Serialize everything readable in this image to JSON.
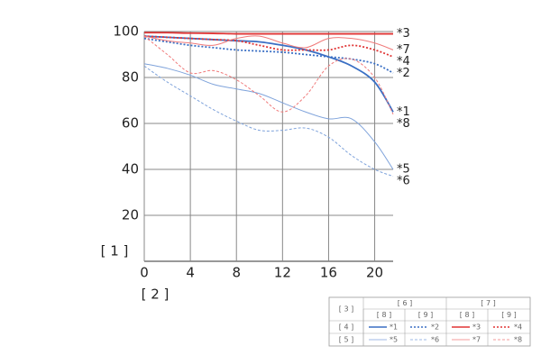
{
  "chart_data": {
    "type": "line",
    "x_label": "[ 2 ]",
    "y_label": "[ 1 ]",
    "x": [
      0,
      2,
      4,
      6,
      8,
      10,
      12,
      14,
      16,
      18,
      20,
      21.6
    ],
    "xlim": [
      0,
      21.6
    ],
    "xticks": [
      0,
      4,
      8,
      12,
      16,
      20
    ],
    "ylim": [
      0,
      100
    ],
    "yticks": [
      20,
      40,
      60,
      80,
      100
    ],
    "grid": true,
    "series": [
      {
        "name": "*1",
        "color": "#3a6fc4",
        "style": "solid",
        "width": 2,
        "values": [
          98,
          97.5,
          97,
          96.5,
          96,
          95.5,
          94,
          92,
          89,
          85,
          78,
          65
        ]
      },
      {
        "name": "*2",
        "color": "#3a6fc4",
        "style": "dotted",
        "width": 2,
        "values": [
          97,
          95.5,
          94,
          93,
          92,
          91.5,
          91,
          90,
          89,
          88,
          86,
          82
        ]
      },
      {
        "name": "*3",
        "color": "#e03535",
        "style": "solid",
        "width": 2,
        "values": [
          99.5,
          99.5,
          99.3,
          99.2,
          99,
          99,
          99,
          99,
          99,
          99,
          99,
          99
        ]
      },
      {
        "name": "*4",
        "color": "#e03535",
        "style": "dotted",
        "width": 2,
        "values": [
          98,
          97.5,
          97,
          96.5,
          96,
          94,
          92,
          92,
          92,
          94,
          92,
          89
        ]
      },
      {
        "name": "*5",
        "color": "#7fa3db",
        "style": "solid",
        "width": 1,
        "values": [
          86,
          84,
          81,
          77,
          75,
          73,
          69,
          65,
          62,
          62,
          52,
          40
        ]
      },
      {
        "name": "*6",
        "color": "#7fa3db",
        "style": "dashed",
        "width": 1,
        "values": [
          85,
          78,
          72,
          66,
          61,
          57,
          57,
          58,
          54,
          46,
          40,
          37
        ]
      },
      {
        "name": "*7",
        "color": "#f07a7a",
        "style": "solid",
        "width": 1,
        "values": [
          98,
          96,
          95,
          94,
          97,
          98,
          95,
          93,
          97,
          97,
          95,
          92
        ]
      },
      {
        "name": "*8",
        "color": "#f07a7a",
        "style": "dashed",
        "width": 1,
        "values": [
          98,
          90,
          82,
          83,
          79,
          72,
          65,
          72,
          85,
          88,
          80,
          64
        ]
      }
    ],
    "legend_table": {
      "corner": "[ 3 ]",
      "columns": [
        "[ 6 ]",
        "[ 7 ]"
      ],
      "subcolumns": [
        "[ 8 ]",
        "[ 9 ]"
      ],
      "rows": [
        "[ 4 ]",
        "[ 5 ]"
      ]
    }
  }
}
